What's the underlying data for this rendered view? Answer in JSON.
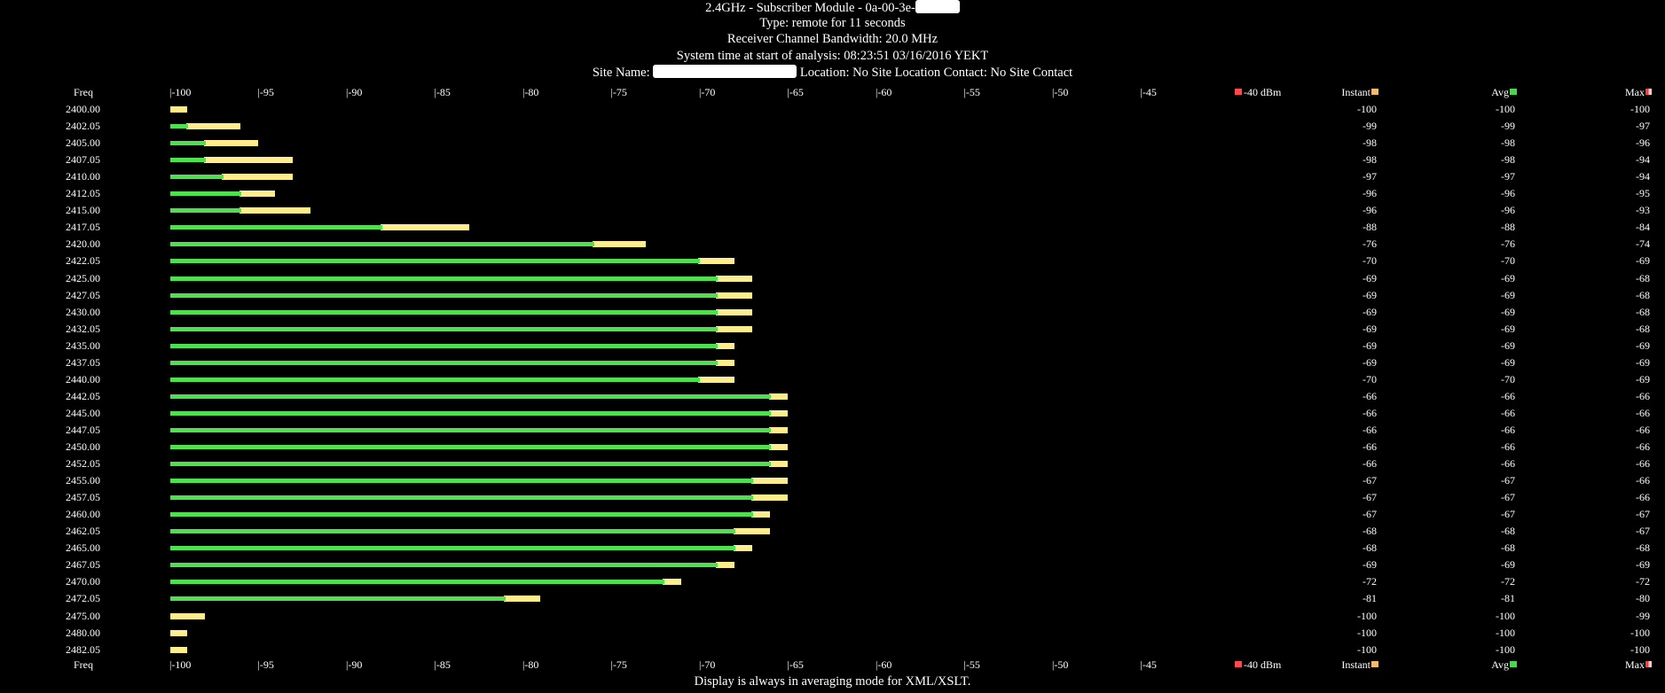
{
  "header": {
    "line1_prefix": "2.4GHz - Subscriber Module - 0a-00-3e-",
    "line2": "Type: remote for 11 seconds",
    "line3": "Receiver Channel Bandwidth: 20.0 MHz",
    "line4": "System time at start of analysis: 08:23:51 03/16/2016 YEKT",
    "line5_prefix": "Site Name: ",
    "line5_suffix": " Location: No Site Location Contact: No Site Contact"
  },
  "scale": {
    "freq_label": "Freq",
    "ticks": [
      "|-100",
      "|-95",
      "|-90",
      "|-85",
      "|-80",
      "|-75",
      "|-70",
      "|-65",
      "|-60",
      "|-55",
      "|-50",
      "|-45"
    ],
    "end_label": "-40 dBm",
    "instant_label": "Instant",
    "avg_label": "Avg",
    "max_label": "Max"
  },
  "footer": "Display is always in averaging mode for XML/XSLT.",
  "colors": {
    "background": "#000000",
    "avg_bar": "#4ee04e",
    "max_bar": "#ffec8b",
    "instant_swatch": "#f7b96a",
    "avg_swatch": "#4fd44f",
    "dbm_swatch": "#ff4a4a"
  },
  "chart_data": {
    "type": "bar",
    "orientation": "horizontal",
    "x_range_dbm": [
      -100,
      -40
    ],
    "columns": [
      "Freq",
      "Instant",
      "Avg",
      "Max"
    ],
    "rows": [
      {
        "freq": "2400.00",
        "instant": -100,
        "avg": -100,
        "max": -100
      },
      {
        "freq": "2402.05",
        "instant": -99,
        "avg": -99,
        "max": -97
      },
      {
        "freq": "2405.00",
        "instant": -98,
        "avg": -98,
        "max": -96
      },
      {
        "freq": "2407.05",
        "instant": -98,
        "avg": -98,
        "max": -94
      },
      {
        "freq": "2410.00",
        "instant": -97,
        "avg": -97,
        "max": -94
      },
      {
        "freq": "2412.05",
        "instant": -96,
        "avg": -96,
        "max": -95
      },
      {
        "freq": "2415.00",
        "instant": -96,
        "avg": -96,
        "max": -93
      },
      {
        "freq": "2417.05",
        "instant": -88,
        "avg": -88,
        "max": -84
      },
      {
        "freq": "2420.00",
        "instant": -76,
        "avg": -76,
        "max": -74
      },
      {
        "freq": "2422.05",
        "instant": -70,
        "avg": -70,
        "max": -69
      },
      {
        "freq": "2425.00",
        "instant": -69,
        "avg": -69,
        "max": -68
      },
      {
        "freq": "2427.05",
        "instant": -69,
        "avg": -69,
        "max": -68
      },
      {
        "freq": "2430.00",
        "instant": -69,
        "avg": -69,
        "max": -68
      },
      {
        "freq": "2432.05",
        "instant": -69,
        "avg": -69,
        "max": -68
      },
      {
        "freq": "2435.00",
        "instant": -69,
        "avg": -69,
        "max": -69
      },
      {
        "freq": "2437.05",
        "instant": -69,
        "avg": -69,
        "max": -69
      },
      {
        "freq": "2440.00",
        "instant": -70,
        "avg": -70,
        "max": -69
      },
      {
        "freq": "2442.05",
        "instant": -66,
        "avg": -66,
        "max": -66
      },
      {
        "freq": "2445.00",
        "instant": -66,
        "avg": -66,
        "max": -66
      },
      {
        "freq": "2447.05",
        "instant": -66,
        "avg": -66,
        "max": -66
      },
      {
        "freq": "2450.00",
        "instant": -66,
        "avg": -66,
        "max": -66
      },
      {
        "freq": "2452.05",
        "instant": -66,
        "avg": -66,
        "max": -66
      },
      {
        "freq": "2455.00",
        "instant": -67,
        "avg": -67,
        "max": -66
      },
      {
        "freq": "2457.05",
        "instant": -67,
        "avg": -67,
        "max": -66
      },
      {
        "freq": "2460.00",
        "instant": -67,
        "avg": -67,
        "max": -67
      },
      {
        "freq": "2462.05",
        "instant": -68,
        "avg": -68,
        "max": -67
      },
      {
        "freq": "2465.00",
        "instant": -68,
        "avg": -68,
        "max": -68
      },
      {
        "freq": "2467.05",
        "instant": -69,
        "avg": -69,
        "max": -69
      },
      {
        "freq": "2470.00",
        "instant": -72,
        "avg": -72,
        "max": -72
      },
      {
        "freq": "2472.05",
        "instant": -81,
        "avg": -81,
        "max": -80
      },
      {
        "freq": "2475.00",
        "instant": -100,
        "avg": -100,
        "max": -99
      },
      {
        "freq": "2480.00",
        "instant": -100,
        "avg": -100,
        "max": -100
      },
      {
        "freq": "2482.05",
        "instant": -100,
        "avg": -100,
        "max": -100
      }
    ]
  }
}
